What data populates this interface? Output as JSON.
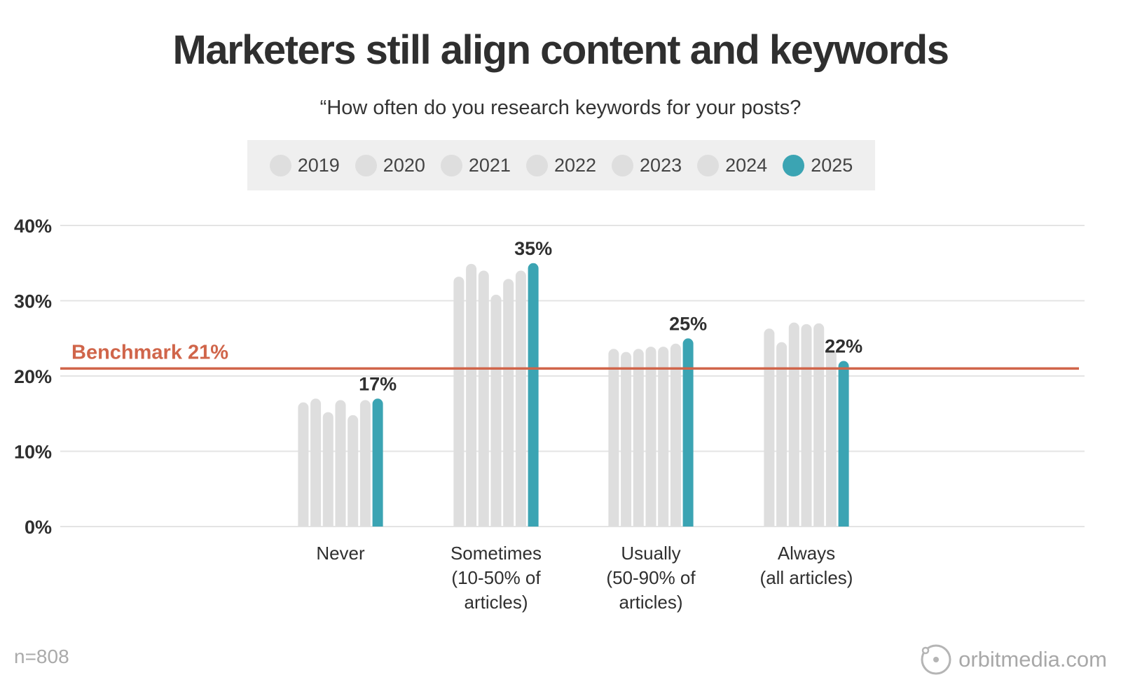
{
  "title": "Marketers still align content and keywords",
  "subtitle": "“How often do you research keywords for your posts?",
  "footnote": "n=808",
  "brand": {
    "text": "orbitmedia.com",
    "icon": "orbit-logo-icon"
  },
  "colors": {
    "highlight": "#3ba4b3",
    "muted": "#dedede",
    "benchmark": "#d0654a",
    "grid": "#e4e4e4",
    "text": "#2f2f2f"
  },
  "chart_data": {
    "type": "bar",
    "title": "Marketers still align content and keywords",
    "subtitle": "“How often do you research keywords for your posts?",
    "categories": [
      [
        "Never"
      ],
      [
        "Sometimes",
        "(10-50% of",
        "articles)"
      ],
      [
        "Usually",
        "(50-90% of",
        "articles)"
      ],
      [
        "Always",
        "(all articles)"
      ]
    ],
    "series": [
      {
        "name": "2019",
        "values": [
          16.5,
          33.2,
          23.6,
          26.3
        ]
      },
      {
        "name": "2020",
        "values": [
          17.0,
          34.9,
          23.2,
          24.5
        ]
      },
      {
        "name": "2021",
        "values": [
          15.2,
          34.0,
          23.6,
          27.1
        ]
      },
      {
        "name": "2022",
        "values": [
          16.8,
          30.8,
          23.9,
          26.9
        ]
      },
      {
        "name": "2023",
        "values": [
          14.8,
          32.9,
          23.9,
          27.0
        ]
      },
      {
        "name": "2024",
        "values": [
          16.8,
          34.0,
          24.3,
          23.5
        ]
      },
      {
        "name": "2025",
        "values": [
          17,
          35,
          25,
          22
        ]
      }
    ],
    "highlight_series": "2025",
    "data_labels": [
      "17%",
      "35%",
      "25%",
      "22%"
    ],
    "ylim": [
      0,
      40
    ],
    "yticks": [
      0,
      10,
      20,
      30,
      40
    ],
    "ytick_labels": [
      "0%",
      "10%",
      "20%",
      "30%",
      "40%"
    ],
    "benchmark": {
      "value": 21,
      "label": "Benchmark 21%"
    },
    "grid": true,
    "legend": "top-center"
  }
}
